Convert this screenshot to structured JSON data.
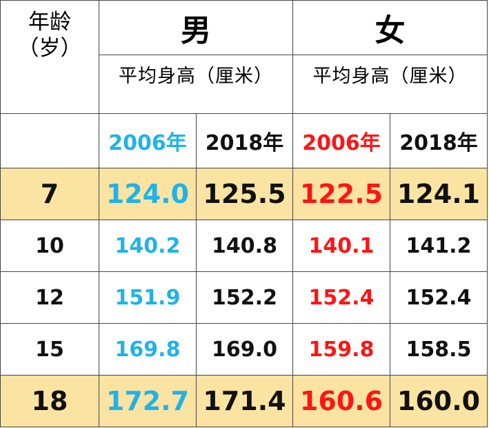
{
  "colors": {
    "boy2006": "#1fb3e8",
    "girl2006": "#ff1414",
    "default": "#111111",
    "highlight": "#fbe3a2"
  },
  "header": {
    "age_line1": "年龄",
    "age_line2": "（岁）",
    "male": "男",
    "female": "女",
    "male_sub": "平均身高（厘米）",
    "female_sub": "平均身高（厘米）",
    "years": [
      "2006年",
      "2018年",
      "2006年",
      "2018年"
    ]
  },
  "rows": [
    {
      "age": "7",
      "m2006": "124.0",
      "m2018": "125.5",
      "f2006": "122.5",
      "f2018": "124.1",
      "highlight": true
    },
    {
      "age": "10",
      "m2006": "140.2",
      "m2018": "140.8",
      "f2006": "140.1",
      "f2018": "141.2",
      "highlight": false
    },
    {
      "age": "12",
      "m2006": "151.9",
      "m2018": "152.2",
      "f2006": "152.4",
      "f2018": "152.4",
      "highlight": false
    },
    {
      "age": "15",
      "m2006": "169.8",
      "m2018": "169.0",
      "f2006": "159.8",
      "f2018": "158.5",
      "highlight": false
    },
    {
      "age": "18",
      "m2006": "172.7",
      "m2018": "171.4",
      "f2006": "160.6",
      "f2018": "160.0",
      "highlight": true
    }
  ]
}
